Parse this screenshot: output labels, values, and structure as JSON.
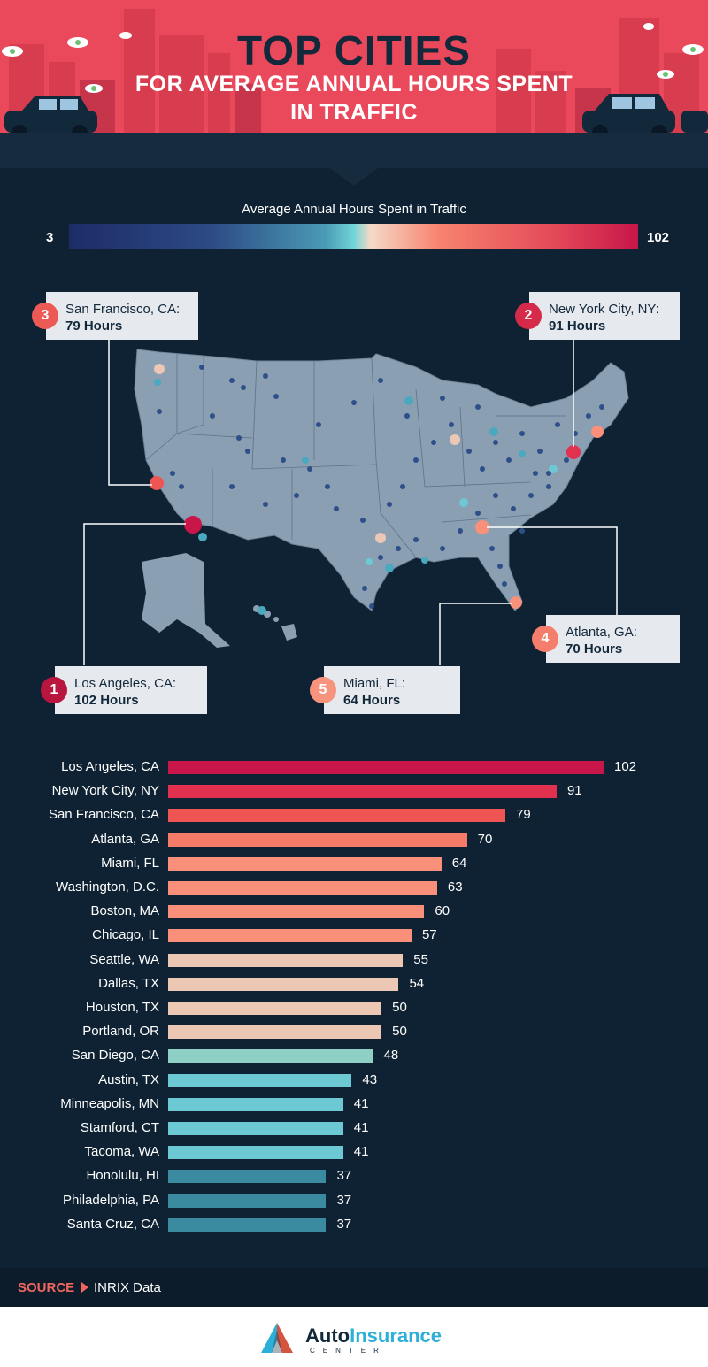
{
  "header": {
    "title_line1": "TOP CITIES",
    "title_line2": "FOR AVERAGE ANNUAL HOURS SPENT",
    "title_line3": "IN TRAFFIC"
  },
  "legend": {
    "title": "Average Annual Hours Spent in Traffic",
    "min": "3",
    "max": "102"
  },
  "callouts": [
    {
      "rank": "1",
      "city": "Los Angeles, CA:",
      "hours": "102 Hours",
      "color": "#b8163f"
    },
    {
      "rank": "2",
      "city": "New York City, NY:",
      "hours": "91 Hours",
      "color": "#d52a49"
    },
    {
      "rank": "3",
      "city": "San Francisco, CA:",
      "hours": "79 Hours",
      "color": "#ec5a56"
    },
    {
      "rank": "4",
      "city": "Atlanta, GA:",
      "hours": "70 Hours",
      "color": "#f57d6b"
    },
    {
      "rank": "5",
      "city": "Miami, FL:",
      "hours": "64 Hours",
      "color": "#f8937d"
    }
  ],
  "chart_data": {
    "type": "bar",
    "orientation": "horizontal",
    "categories": [
      "Los Angeles, CA",
      "New York City, NY",
      "San Francisco, CA",
      "Atlanta, GA",
      "Miami, FL",
      "Washington, D.C.",
      "Boston, MA",
      "Chicago, IL",
      "Seattle, WA",
      "Dallas, TX",
      "Houston, TX",
      "Portland, OR",
      "San Diego, CA",
      "Austin, TX",
      "Minneapolis, MN",
      "Stamford, CT",
      "Tacoma, WA",
      "Honolulu, HI",
      "Philadelphia, PA",
      "Santa Cruz, CA"
    ],
    "values": [
      102,
      91,
      79,
      70,
      64,
      63,
      60,
      57,
      55,
      54,
      50,
      50,
      48,
      43,
      41,
      41,
      41,
      37,
      37,
      37
    ],
    "colors": [
      "#c8164a",
      "#e2304f",
      "#ef5553",
      "#f57b68",
      "#f8907a",
      "#f8907a",
      "#f8907a",
      "#f8907a",
      "#ebc7b4",
      "#ebc7b4",
      "#ebc7b4",
      "#ebc7b4",
      "#8ecfc6",
      "#6cc9d3",
      "#6cc9d3",
      "#6cc9d3",
      "#6cc9d3",
      "#3a8aa0",
      "#3a8aa0",
      "#3a8aa0"
    ]
  },
  "source": {
    "label": "SOURCE",
    "value": "INRIX Data"
  },
  "footer": {
    "brand_a": "Auto",
    "brand_b": "Insurance",
    "brand_sub": "CENTER"
  }
}
